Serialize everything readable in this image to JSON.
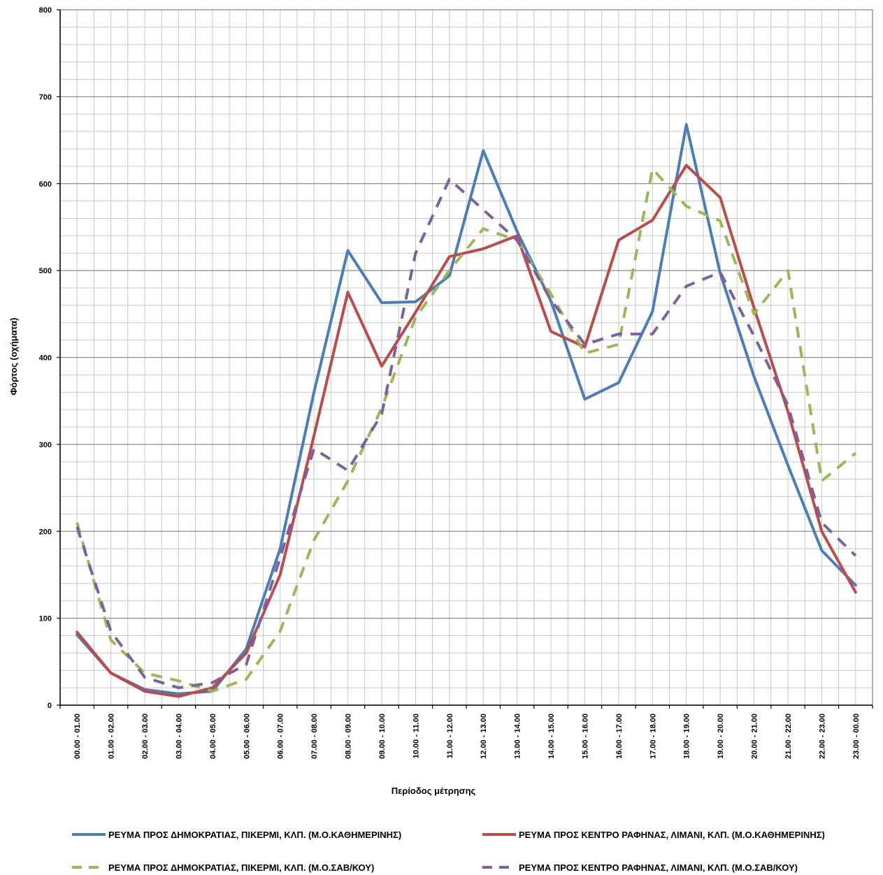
{
  "chart_data": {
    "type": "line",
    "title": "",
    "xlabel": "Περίοδος μέτρησης",
    "ylabel": "Φόρτος (οχήματα)",
    "ylim": [
      0,
      800
    ],
    "yticks": [
      0,
      100,
      200,
      300,
      400,
      500,
      600,
      700,
      800
    ],
    "grid": true,
    "legend_position": "bottom",
    "categories": [
      "00.00 - 01.00",
      "01.00 - 02.00",
      "02.00 - 03.00",
      "03.00 - 04.00",
      "04.00 - 05.00",
      "05.00 - 06.00",
      "06.00 - 07.00",
      "07.00 - 08.00",
      "08.00 - 09.00",
      "09.00 - 10.00",
      "10.00 - 11.00",
      "11.00 - 12.00",
      "12.00 - 13.00",
      "13.00 - 14.00",
      "14.00 - 15.00",
      "15.00 - 16.00",
      "16.00 - 17.00",
      "17.00 - 18.00",
      "18.00 - 19.00",
      "19.00 - 20.00",
      "20.00 - 21.00",
      "21.00 - 22.00",
      "22.00 - 23.00",
      "23.00 - 00.00"
    ],
    "series": [
      {
        "name": "ΡΕΥΜΑ ΠΡΟΣ ΔΗΜΟΚΡΑΤΙΑΣ, ΠΙΚΕΡΜΙ, ΚΛΠ. (Μ.Ο.ΚΑΘΗΜΕΡΙΝΗΣ)",
        "color": "#4a7ebb",
        "dash": "solid",
        "values": [
          81,
          37,
          18,
          13,
          16,
          65,
          180,
          360,
          523,
          463,
          464,
          494,
          638,
          545,
          465,
          352,
          371,
          453,
          668,
          497,
          378,
          276,
          178,
          138
        ]
      },
      {
        "name": "ΡΕΥΜΑ ΠΡΟΣ ΚΕΝΤΡΟ ΡΑΦΗΝΑΣ, ΛΙΜΑΝΙ, ΚΛΠ. (Μ.Ο.ΚΑΘΗΜΕΡΙΝΗΣ)",
        "color": "#be4b48",
        "dash": "solid",
        "values": [
          84,
          37,
          16,
          10,
          20,
          60,
          150,
          310,
          475,
          390,
          452,
          516,
          525,
          540,
          430,
          412,
          535,
          558,
          621,
          584,
          457,
          338,
          200,
          130
        ]
      },
      {
        "name": "ΡΕΥΜΑ ΠΡΟΣ ΔΗΜΟΚΡΑΤΙΑΣ, ΠΙΚΕΡΜΙ, ΚΛΠ. (Μ.Ο.ΣΑΒ/ΚΟΥ)",
        "color": "#98b954",
        "dash": "dashed",
        "values": [
          210,
          75,
          37,
          28,
          16,
          30,
          85,
          190,
          258,
          342,
          446,
          500,
          548,
          535,
          473,
          405,
          415,
          617,
          574,
          557,
          450,
          500,
          258,
          290
        ]
      },
      {
        "name": "ΡΕΥΜΑ ΠΡΟΣ ΚΕΝΤΡΟ ΡΑΦΗΝΑΣ, ΛΙΜΑΝΙ, ΚΛΠ. (Μ.Ο.ΣΑΒ/ΚΟΥ)",
        "color": "#7d60a0",
        "dash": "dashed",
        "values": [
          205,
          85,
          32,
          20,
          26,
          47,
          170,
          295,
          270,
          335,
          520,
          605,
          570,
          535,
          466,
          415,
          427,
          427,
          482,
          498,
          425,
          345,
          210,
          172
        ]
      }
    ]
  }
}
